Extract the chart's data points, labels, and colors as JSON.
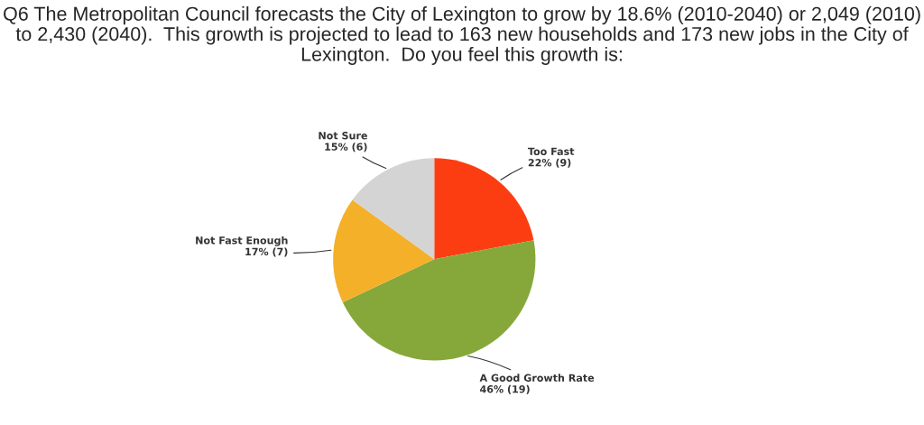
{
  "chart_data": {
    "type": "pie",
    "title": "Q6 The Metropolitan Council forecasts the City of Lexington to grow by 18.6% (2010-2040) or 2,049 (2010) to 2,430 (2040).  This growth is projected to lead to 163 new households and 173 new jobs in the City of Lexington.  Do you feel this growth is:",
    "categories": [
      "Too Fast",
      "A Good Growth Rate",
      "Not Fast Enough",
      "Not Sure"
    ],
    "values": [
      22,
      46,
      17,
      15
    ],
    "value_labels": [
      "22% (9)",
      "46% (19)",
      "17% (7)",
      "15% (6)"
    ],
    "colors": [
      "#fc3d12",
      "#86a83a",
      "#f5b02a",
      "#d4d4d4"
    ]
  }
}
